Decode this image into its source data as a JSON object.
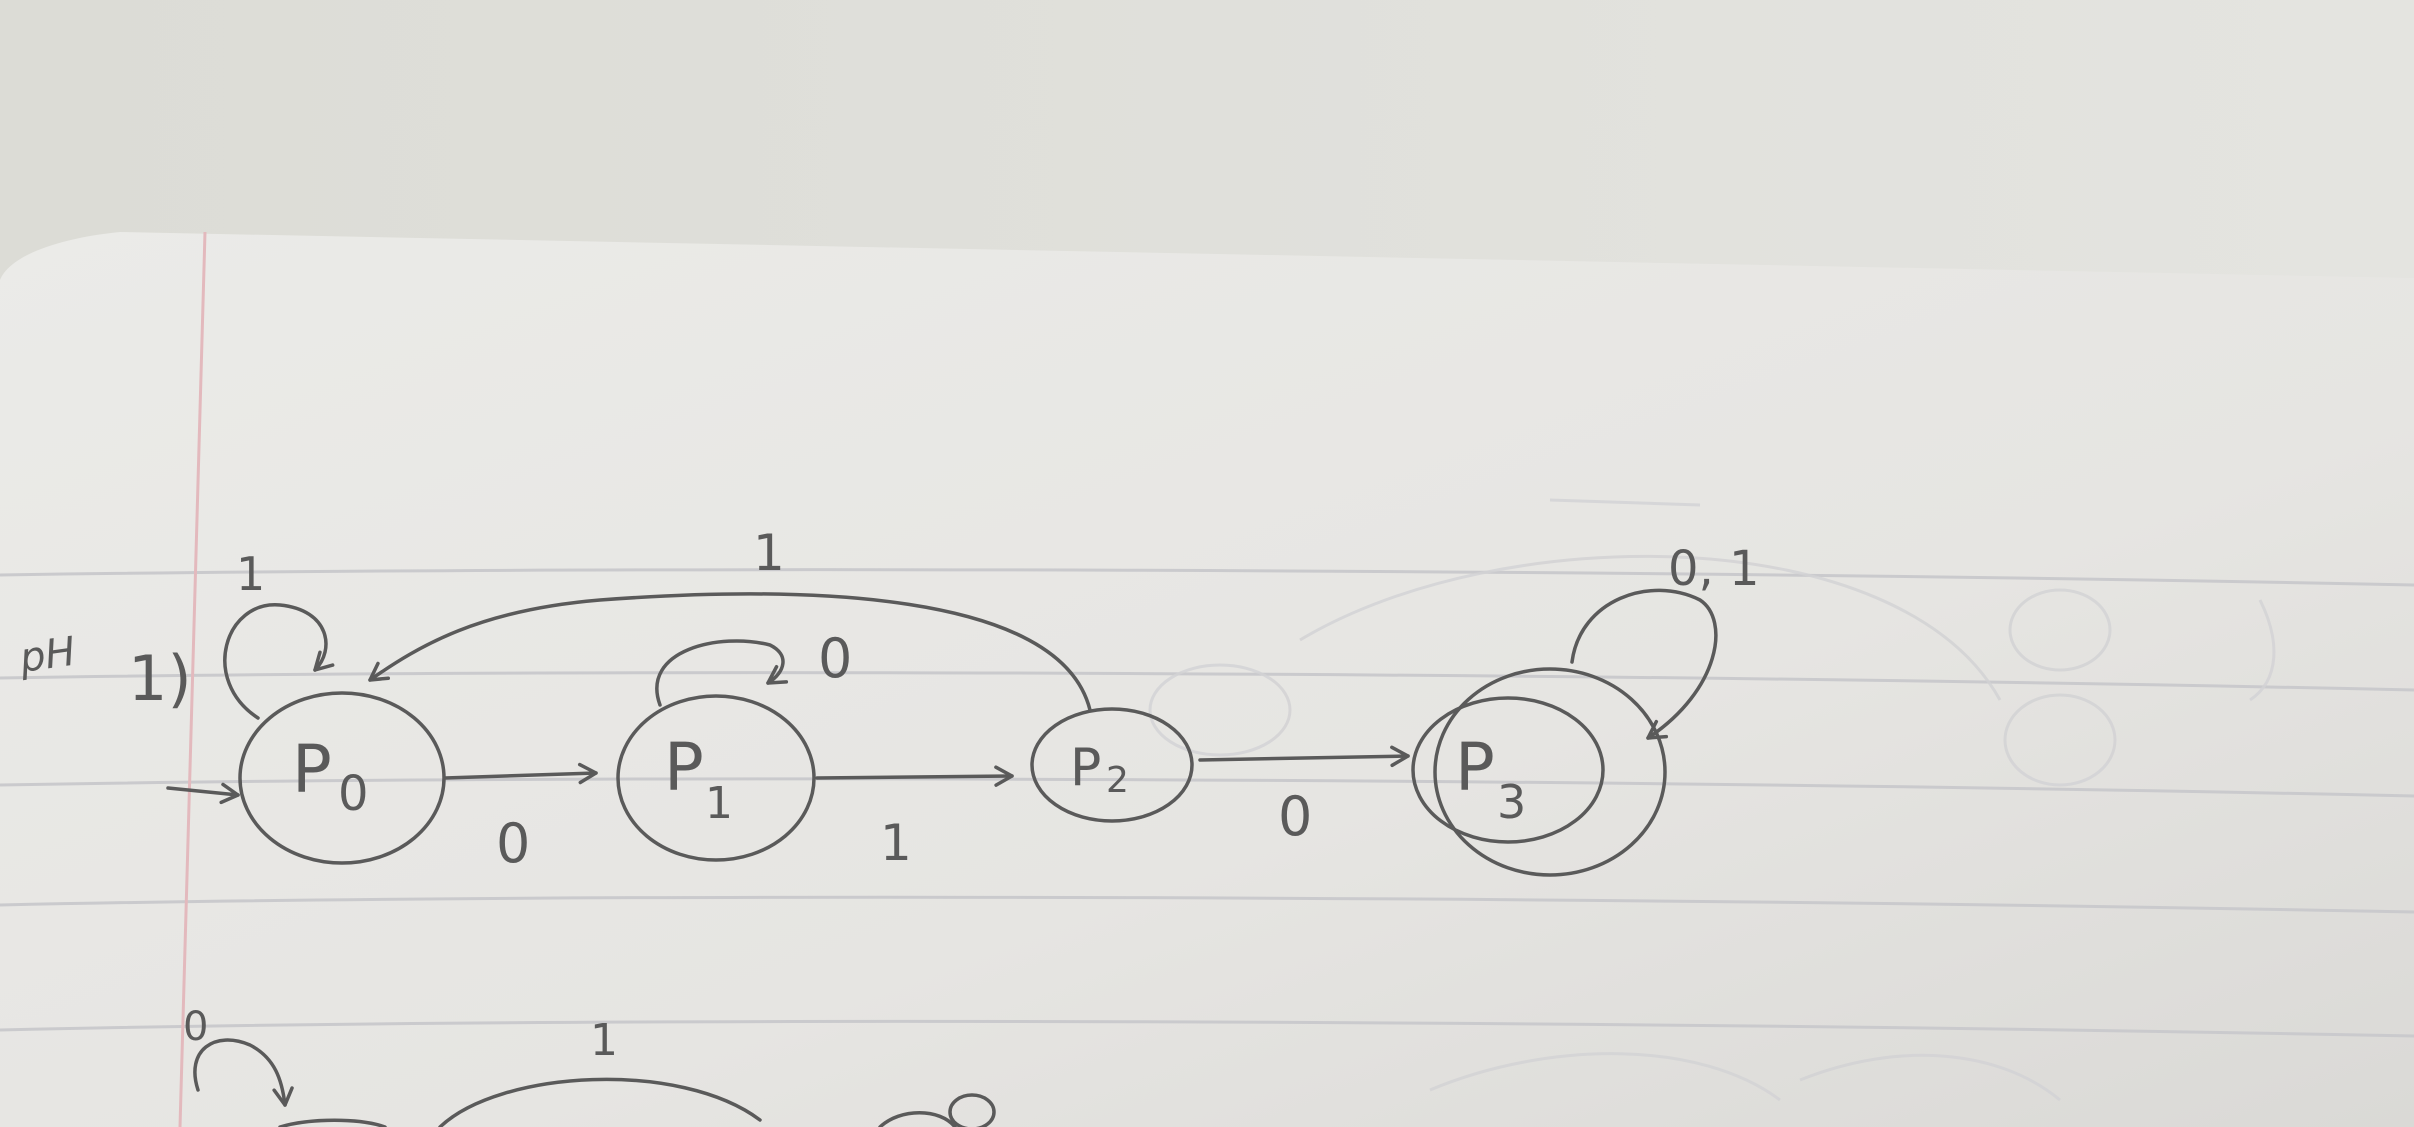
{
  "page": {
    "margin_note": "pH",
    "problem_number": "1)"
  },
  "automaton": {
    "states": [
      {
        "id": "p0",
        "label": "P",
        "subscript": "0",
        "start": true,
        "accepting": false
      },
      {
        "id": "p1",
        "label": "P",
        "subscript": "1",
        "start": false,
        "accepting": false
      },
      {
        "id": "p2",
        "label": "P",
        "subscript": "2",
        "start": false,
        "accepting": false
      },
      {
        "id": "p3",
        "label": "P",
        "subscript": "3",
        "start": false,
        "accepting": true
      }
    ],
    "transitions": [
      {
        "from": "p0",
        "to": "p0",
        "label": "1"
      },
      {
        "from": "p0",
        "to": "p1",
        "label": "0"
      },
      {
        "from": "p1",
        "to": "p1",
        "label": "0"
      },
      {
        "from": "p1",
        "to": "p2",
        "label": "1"
      },
      {
        "from": "p2",
        "to": "p0",
        "label": "1"
      },
      {
        "from": "p2",
        "to": "p3",
        "label": "0"
      },
      {
        "from": "p3",
        "to": "p3",
        "label": "0, 1"
      }
    ]
  },
  "next_problem_partial": {
    "loop_label": "0",
    "arc_label": "1"
  },
  "colors": {
    "paper": "#e9e8e4",
    "background": "#dcdcd7",
    "pencil": "#5a5a5a",
    "margin_line": "#e3b9bd",
    "ruled_line": "#c9c9cc"
  }
}
